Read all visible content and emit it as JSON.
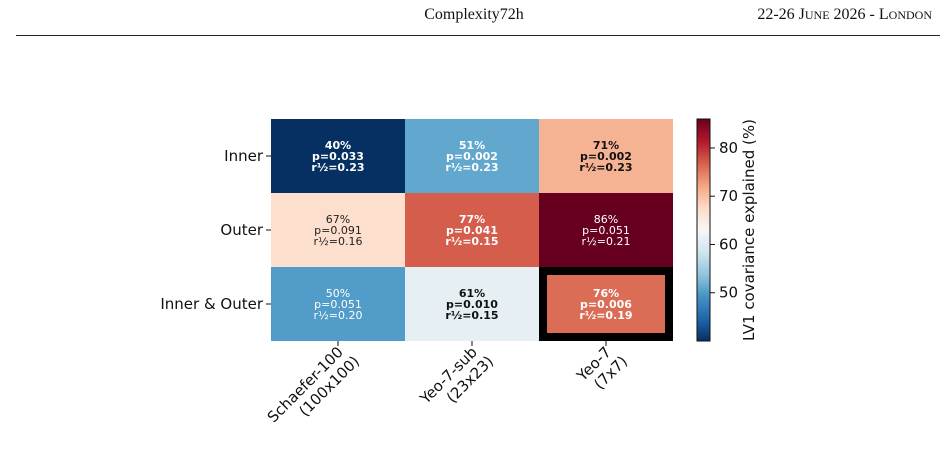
{
  "header": {
    "venue": "Complexity72h",
    "dates": "22-26 June 2026 - London"
  },
  "chart_data": {
    "type": "heatmap",
    "rows": [
      "Inner",
      "Outer",
      "Inner & Outer"
    ],
    "columns": [
      "Schaefer-100\n(100x100)",
      "Yeo-7-sub\n(23x23)",
      "Yeo-7\n(7x7)"
    ],
    "values": [
      [
        40,
        51,
        71
      ],
      [
        67,
        77,
        86
      ],
      [
        50,
        61,
        76
      ]
    ],
    "cell_labels": [
      [
        {
          "pct": "40%",
          "p": "p=0.033",
          "r": "r½=0.23",
          "bold": true,
          "color": "#ffffff"
        },
        {
          "pct": "51%",
          "p": "p=0.002",
          "r": "r½=0.23",
          "bold": true,
          "color": "#ffffff"
        },
        {
          "pct": "71%",
          "p": "p=0.002",
          "r": "r½=0.23",
          "bold": true,
          "color": "#111111"
        }
      ],
      [
        {
          "pct": "67%",
          "p": "p=0.091",
          "r": "r½=0.16",
          "bold": false,
          "color": "#222222"
        },
        {
          "pct": "77%",
          "p": "p=0.041",
          "r": "r½=0.15",
          "bold": true,
          "color": "#ffffff"
        },
        {
          "pct": "86%",
          "p": "p=0.051",
          "r": "r½=0.21",
          "bold": false,
          "color": "#ffffff"
        }
      ],
      [
        {
          "pct": "50%",
          "p": "p=0.051",
          "r": "r½=0.20",
          "bold": false,
          "color": "#ffffff"
        },
        {
          "pct": "61%",
          "p": "p=0.010",
          "r": "r½=0.15",
          "bold": true,
          "color": "#111111"
        },
        {
          "pct": "76%",
          "p": "p=0.006",
          "r": "r½=0.19",
          "bold": true,
          "color": "#ffffff"
        }
      ]
    ],
    "highlight_cell": {
      "row": 2,
      "col": 2
    },
    "colorscale": "RdBu_r",
    "colorbar": {
      "label": "LV1 covariance explained (%)",
      "vmin": 40,
      "vmax": 86,
      "ticks": [
        50,
        60,
        70,
        80
      ]
    }
  }
}
